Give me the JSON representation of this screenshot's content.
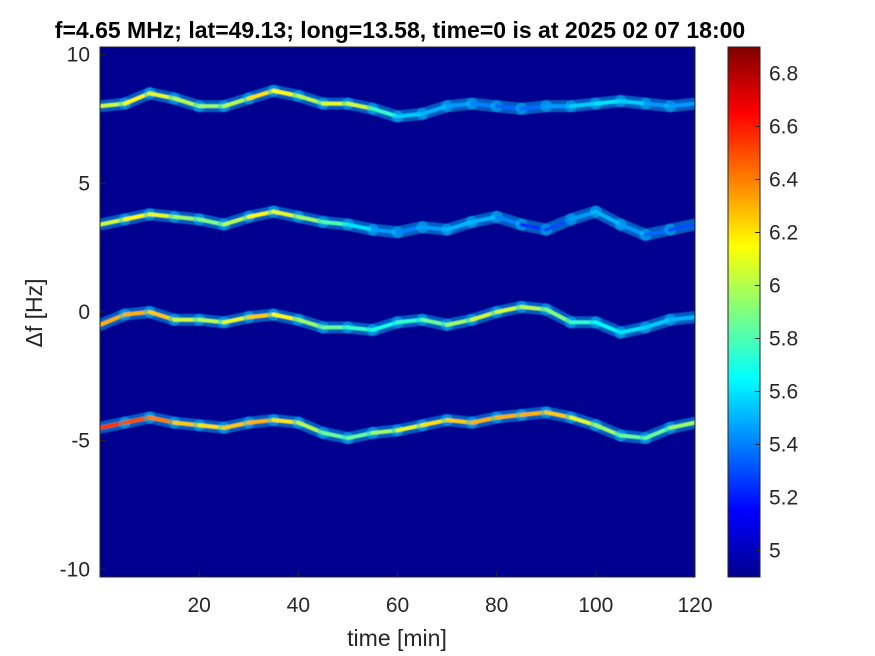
{
  "chart_data": {
    "type": "heatmap",
    "title": "f=4.65 MHz;  lat=49.13; long=13.58, time=0 is at 2025 02 07 18:00",
    "xlabel": "time [min]",
    "ylabel": "Δf [Hz]",
    "xlim": [
      0,
      120
    ],
    "ylim": [
      -10.3,
      10.3
    ],
    "xticks": [
      20,
      40,
      60,
      80,
      100,
      120
    ],
    "yticks": [
      -10,
      -5,
      0,
      5,
      10
    ],
    "xtick_labels": [
      "20",
      "40",
      "60",
      "80",
      "100",
      "120"
    ],
    "ytick_labels": [
      "-10",
      "-5",
      "0",
      "5",
      "10"
    ],
    "colorbar": {
      "colormap": "jet",
      "clim": [
        4.9,
        6.9
      ],
      "ticks": [
        5,
        5.2,
        5.4,
        5.6,
        5.8,
        6,
        6.2,
        6.4,
        6.6,
        6.8
      ],
      "tick_labels": [
        "5",
        "5.2",
        "5.4",
        "5.6",
        "5.8",
        "6",
        "6.2",
        "6.4",
        "6.6",
        "6.8"
      ]
    },
    "background_color": "#00008f",
    "traces": [
      {
        "x": [
          0,
          5,
          10,
          15,
          20,
          25,
          30,
          35,
          40,
          45,
          50,
          55,
          60,
          65,
          70,
          75,
          80,
          85,
          90,
          95,
          100,
          105,
          110,
          115,
          120
        ],
        "y": [
          8.0,
          8.1,
          8.5,
          8.3,
          8.0,
          8.0,
          8.3,
          8.6,
          8.4,
          8.1,
          8.1,
          7.9,
          7.6,
          7.7,
          8.0,
          8.1,
          8.0,
          7.9,
          8.0,
          8.0,
          8.1,
          8.2,
          8.1,
          8.0,
          8.1
        ],
        "intensity": [
          6.0,
          6.1,
          6.2,
          6.0,
          6.0,
          5.9,
          6.1,
          6.3,
          6.0,
          6.0,
          6.2,
          5.9,
          5.6,
          5.5,
          5.5,
          5.4,
          5.4,
          5.3,
          5.4,
          5.5,
          5.6,
          5.6,
          5.5,
          5.4,
          5.5
        ]
      },
      {
        "x": [
          0,
          5,
          10,
          15,
          20,
          25,
          30,
          35,
          40,
          45,
          50,
          55,
          60,
          65,
          70,
          75,
          80,
          85,
          90,
          95,
          100,
          105,
          110,
          115,
          120
        ],
        "y": [
          3.4,
          3.6,
          3.8,
          3.7,
          3.6,
          3.4,
          3.7,
          3.9,
          3.7,
          3.5,
          3.4,
          3.2,
          3.1,
          3.3,
          3.2,
          3.5,
          3.7,
          3.4,
          3.2,
          3.6,
          3.9,
          3.4,
          3.0,
          3.2,
          3.4
        ],
        "intensity": [
          6.0,
          6.1,
          6.2,
          6.0,
          5.9,
          5.9,
          6.1,
          6.2,
          6.0,
          5.9,
          5.7,
          5.5,
          5.4,
          5.4,
          5.5,
          5.5,
          5.5,
          5.3,
          5.2,
          5.4,
          5.5,
          5.5,
          5.4,
          5.3,
          5.3
        ]
      },
      {
        "x": [
          0,
          5,
          10,
          15,
          20,
          25,
          30,
          35,
          40,
          45,
          50,
          55,
          60,
          65,
          70,
          75,
          80,
          85,
          90,
          95,
          100,
          105,
          110,
          115,
          120
        ],
        "y": [
          -0.5,
          -0.1,
          0.0,
          -0.3,
          -0.3,
          -0.4,
          -0.2,
          -0.1,
          -0.3,
          -0.6,
          -0.6,
          -0.7,
          -0.4,
          -0.3,
          -0.5,
          -0.3,
          0.0,
          0.2,
          0.1,
          -0.4,
          -0.4,
          -0.8,
          -0.6,
          -0.3,
          -0.2
        ],
        "intensity": [
          6.4,
          6.2,
          6.4,
          6.1,
          6.0,
          6.0,
          6.2,
          6.3,
          6.0,
          5.9,
          5.8,
          5.7,
          5.7,
          5.8,
          5.9,
          6.0,
          6.1,
          6.0,
          6.0,
          5.8,
          5.7,
          5.6,
          5.6,
          5.5,
          5.5
        ]
      },
      {
        "x": [
          0,
          5,
          10,
          15,
          20,
          25,
          30,
          35,
          40,
          45,
          50,
          55,
          60,
          65,
          70,
          75,
          80,
          85,
          90,
          95,
          100,
          105,
          110,
          115,
          120
        ],
        "y": [
          -4.5,
          -4.3,
          -4.1,
          -4.3,
          -4.4,
          -4.5,
          -4.3,
          -4.2,
          -4.3,
          -4.7,
          -4.9,
          -4.7,
          -4.6,
          -4.4,
          -4.2,
          -4.3,
          -4.1,
          -4.0,
          -3.9,
          -4.1,
          -4.4,
          -4.8,
          -4.9,
          -4.5,
          -4.3
        ],
        "intensity": [
          6.6,
          6.5,
          6.5,
          6.3,
          6.2,
          6.2,
          6.3,
          6.3,
          6.1,
          5.9,
          5.8,
          5.9,
          6.0,
          6.2,
          6.2,
          6.3,
          6.3,
          6.3,
          6.3,
          6.2,
          6.0,
          5.9,
          5.8,
          5.9,
          6.0
        ]
      }
    ]
  }
}
